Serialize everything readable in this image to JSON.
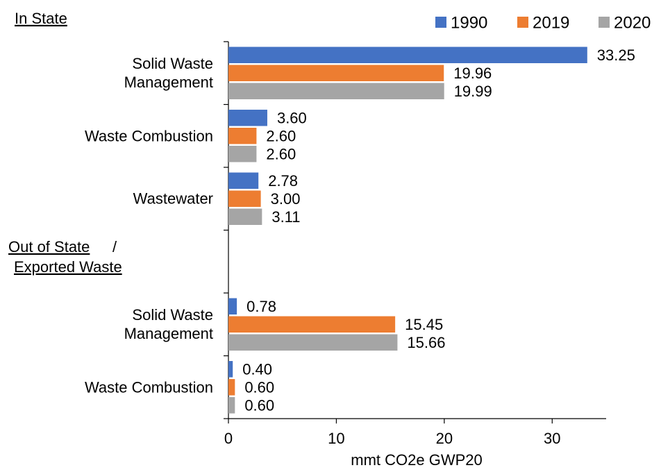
{
  "chart_data": {
    "type": "barh",
    "annotations": [
      "In State",
      "Out of State",
      "/",
      "Exported Waste"
    ],
    "categories": [
      "Solid Waste Management",
      "Waste Combustion",
      "Wastewater",
      null,
      "Solid Waste Management",
      "Waste Combustion"
    ],
    "series": [
      {
        "name": "1990",
        "color": "#4472c4",
        "values": [
          33.25,
          3.6,
          2.78,
          null,
          0.78,
          0.4
        ],
        "value_labels": [
          "33.25",
          "3.60",
          "2.78",
          null,
          "0.78",
          "0.40"
        ]
      },
      {
        "name": "2019",
        "color": "#ed7d31",
        "values": [
          19.96,
          2.6,
          3.0,
          null,
          15.45,
          0.6
        ],
        "value_labels": [
          "19.96",
          "2.60",
          "3.00",
          null,
          "15.45",
          "0.60"
        ]
      },
      {
        "name": "2020",
        "color": "#a5a5a5",
        "values": [
          19.99,
          2.6,
          3.11,
          null,
          15.66,
          0.6
        ],
        "value_labels": [
          "19.99",
          "2.60",
          "3.11",
          null,
          "15.66",
          "0.60"
        ]
      }
    ],
    "x_label": "mmt CO2e GWP20",
    "xlim": [
      0,
      35
    ],
    "xticks": [
      0,
      10,
      20,
      30
    ],
    "legend": "top-right",
    "grid": false
  }
}
